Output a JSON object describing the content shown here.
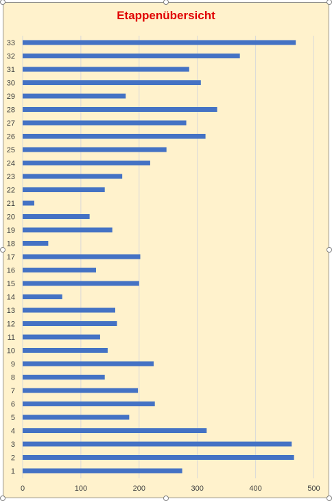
{
  "chart_data": {
    "type": "bar",
    "orientation": "horizontal",
    "title": "Etappenübersicht",
    "title_color": "#e00000",
    "bar_color": "#4472c4",
    "background_color": "#fff2cc",
    "grid": true,
    "xlim": [
      0,
      500
    ],
    "x_ticks": [
      0,
      100,
      200,
      300,
      400,
      500
    ],
    "categories": [
      "1",
      "2",
      "3",
      "4",
      "5",
      "6",
      "7",
      "8",
      "9",
      "10",
      "11",
      "12",
      "13",
      "14",
      "15",
      "16",
      "17",
      "18",
      "19",
      "20",
      "21",
      "22",
      "23",
      "24",
      "25",
      "26",
      "27",
      "28",
      "29",
      "30",
      "31",
      "32",
      "33"
    ],
    "values": [
      274,
      466,
      462,
      316,
      183,
      227,
      198,
      141,
      225,
      146,
      133,
      162,
      159,
      68,
      200,
      126,
      202,
      44,
      154,
      115,
      20,
      141,
      171,
      219,
      247,
      314,
      281,
      334,
      177,
      306,
      286,
      373,
      469
    ]
  }
}
